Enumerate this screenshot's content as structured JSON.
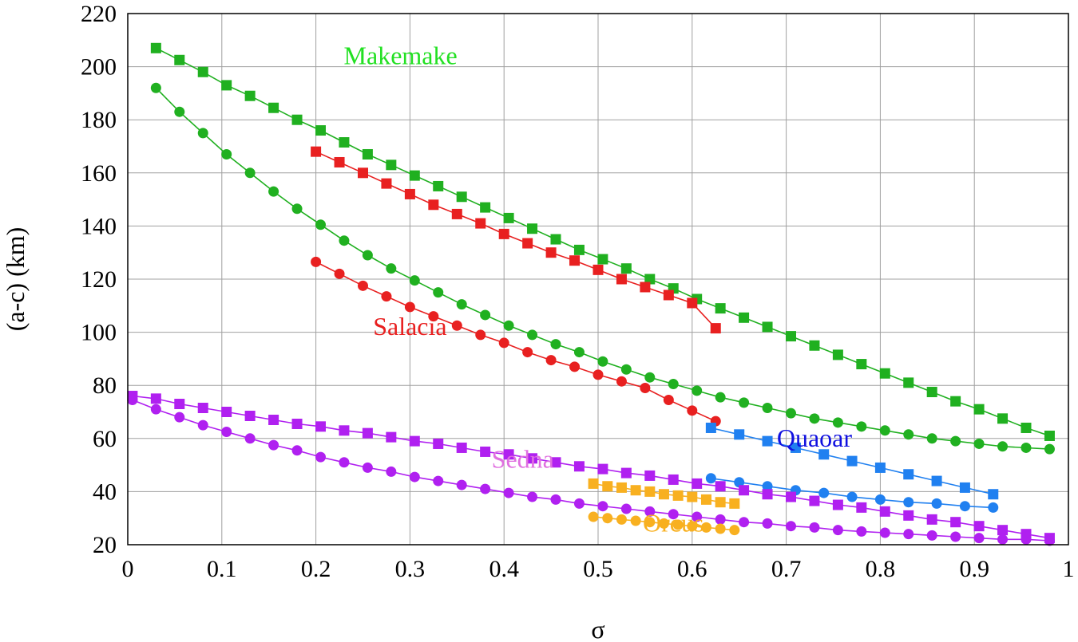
{
  "chart_data": {
    "type": "line",
    "title": "",
    "xlabel": "σ",
    "ylabel": "(a-c) (km)",
    "xlim": [
      0,
      1
    ],
    "ylim": [
      20,
      220
    ],
    "grid": true,
    "xticks": [
      0,
      0.1,
      0.2,
      0.3,
      0.4,
      0.5,
      0.6,
      0.7,
      0.8,
      0.9,
      1
    ],
    "xtick_labels": [
      "0",
      "0.1",
      "0.2",
      "0.3",
      "0.4",
      "0.5",
      "0.6",
      "0.7",
      "0.8",
      "0.9",
      "1"
    ],
    "yticks": [
      20,
      40,
      60,
      80,
      100,
      120,
      140,
      160,
      180,
      200,
      220
    ],
    "ytick_labels": [
      "20",
      "40",
      "60",
      "80",
      "100",
      "120",
      "140",
      "160",
      "180",
      "200",
      "220"
    ],
    "annotations": [
      {
        "id": "makemake",
        "text": "Makemake",
        "color": "#22e022",
        "x": 0.29,
        "y": 201
      },
      {
        "id": "salacia",
        "text": "Salacia",
        "color": "#e82020",
        "x": 0.3,
        "y": 99
      },
      {
        "id": "sedna",
        "text": "Sedna",
        "color": "#e070e0",
        "x": 0.42,
        "y": 49
      },
      {
        "id": "quaoar",
        "text": "Quaoar",
        "color": "#1010e0",
        "x": 0.73,
        "y": 57
      },
      {
        "id": "orcus",
        "text": "Orcus",
        "color": "#f8b020",
        "x": 0.58,
        "y": 25
      }
    ],
    "series": [
      {
        "name": "Makemake (squares)",
        "color": "#20b020",
        "marker": "square",
        "x": [
          0.03,
          0.055,
          0.08,
          0.105,
          0.13,
          0.155,
          0.18,
          0.205,
          0.23,
          0.255,
          0.28,
          0.305,
          0.33,
          0.355,
          0.38,
          0.405,
          0.43,
          0.455,
          0.48,
          0.505,
          0.53,
          0.555,
          0.58,
          0.605,
          0.63,
          0.655,
          0.68,
          0.705,
          0.73,
          0.755,
          0.78,
          0.805,
          0.83,
          0.855,
          0.88,
          0.905,
          0.93,
          0.955,
          0.98
        ],
        "y": [
          207,
          202.5,
          198,
          193,
          189,
          184.5,
          180,
          176,
          171.5,
          167,
          163,
          159,
          155,
          151,
          147,
          143,
          139,
          135,
          131,
          127.5,
          124,
          120,
          116.5,
          112.5,
          109,
          105.5,
          102,
          98.5,
          95,
          91.5,
          88,
          84.5,
          81,
          77.5,
          74,
          71,
          67.5,
          64,
          61
        ]
      },
      {
        "name": "Makemake (circles)",
        "color": "#20b020",
        "marker": "circle",
        "x": [
          0.03,
          0.055,
          0.08,
          0.105,
          0.13,
          0.155,
          0.18,
          0.205,
          0.23,
          0.255,
          0.28,
          0.305,
          0.33,
          0.355,
          0.38,
          0.405,
          0.43,
          0.455,
          0.48,
          0.505,
          0.53,
          0.555,
          0.58,
          0.605,
          0.63,
          0.655,
          0.68,
          0.705,
          0.73,
          0.755,
          0.78,
          0.805,
          0.83,
          0.855,
          0.88,
          0.905,
          0.93,
          0.955,
          0.98
        ],
        "y": [
          192,
          183,
          175,
          167,
          160,
          153,
          146.5,
          140.5,
          134.5,
          129,
          124,
          119.5,
          115,
          110.5,
          106.5,
          102.5,
          99,
          95.5,
          92.5,
          89,
          86,
          83,
          80.5,
          78,
          75.5,
          73.5,
          71.5,
          69.5,
          67.5,
          66,
          64.5,
          63,
          61.5,
          60,
          59,
          58,
          57,
          56.5,
          56
        ]
      },
      {
        "name": "Salacia (squares)",
        "color": "#e82020",
        "marker": "square",
        "x": [
          0.2,
          0.225,
          0.25,
          0.275,
          0.3,
          0.325,
          0.35,
          0.375,
          0.4,
          0.425,
          0.45,
          0.475,
          0.5,
          0.525,
          0.55,
          0.575,
          0.6,
          0.625
        ],
        "y": [
          168,
          164,
          160,
          156,
          152,
          148,
          144.5,
          141,
          137,
          133.5,
          130,
          127,
          123.5,
          120,
          117,
          114,
          111,
          101.5
        ]
      },
      {
        "name": "Salacia (circles)",
        "color": "#e82020",
        "marker": "circle",
        "x": [
          0.2,
          0.225,
          0.25,
          0.275,
          0.3,
          0.325,
          0.35,
          0.375,
          0.4,
          0.425,
          0.45,
          0.475,
          0.5,
          0.525,
          0.55,
          0.575,
          0.6,
          0.625
        ],
        "y": [
          126.5,
          122,
          117.5,
          113.5,
          109.5,
          106,
          102.5,
          99,
          96,
          92.5,
          89.5,
          87,
          84,
          81.5,
          79,
          74.5,
          70.5,
          66.5
        ]
      },
      {
        "name": "Quaoar (squares)",
        "color": "#2080f0",
        "marker": "square",
        "x": [
          0.62,
          0.65,
          0.68,
          0.71,
          0.74,
          0.77,
          0.8,
          0.83,
          0.86,
          0.89,
          0.92
        ],
        "y": [
          64,
          61.5,
          59,
          56.5,
          54,
          51.5,
          49,
          46.5,
          44,
          41.5,
          39
        ]
      },
      {
        "name": "Quaoar (circles)",
        "color": "#2080f0",
        "marker": "circle",
        "x": [
          0.62,
          0.65,
          0.68,
          0.71,
          0.74,
          0.77,
          0.8,
          0.83,
          0.86,
          0.89,
          0.92
        ],
        "y": [
          45,
          43.5,
          42,
          40.5,
          39.5,
          38,
          37,
          36,
          35.5,
          34.5,
          34
        ]
      },
      {
        "name": "Sedna (squares)",
        "color": "#b020f0",
        "marker": "square",
        "x": [
          0.005,
          0.03,
          0.055,
          0.08,
          0.105,
          0.13,
          0.155,
          0.18,
          0.205,
          0.23,
          0.255,
          0.28,
          0.305,
          0.33,
          0.355,
          0.38,
          0.405,
          0.43,
          0.455,
          0.48,
          0.505,
          0.53,
          0.555,
          0.58,
          0.605,
          0.63,
          0.655,
          0.68,
          0.705,
          0.73,
          0.755,
          0.78,
          0.805,
          0.83,
          0.855,
          0.88,
          0.905,
          0.93,
          0.955,
          0.98
        ],
        "y": [
          76,
          75,
          73,
          71.5,
          70,
          68.5,
          67,
          65.5,
          64.5,
          63,
          62,
          60.5,
          59,
          58,
          56.5,
          55,
          54,
          52.5,
          51,
          49.5,
          48.5,
          47,
          46,
          44.5,
          43,
          42,
          40.5,
          39,
          38,
          36.5,
          35,
          34,
          32.5,
          31,
          29.5,
          28.5,
          27,
          25.5,
          24,
          22.5
        ]
      },
      {
        "name": "Sedna (circles)",
        "color": "#b020f0",
        "marker": "circle",
        "x": [
          0.005,
          0.03,
          0.055,
          0.08,
          0.105,
          0.13,
          0.155,
          0.18,
          0.205,
          0.23,
          0.255,
          0.28,
          0.305,
          0.33,
          0.355,
          0.38,
          0.405,
          0.43,
          0.455,
          0.48,
          0.505,
          0.53,
          0.555,
          0.58,
          0.605,
          0.63,
          0.655,
          0.68,
          0.705,
          0.73,
          0.755,
          0.78,
          0.805,
          0.83,
          0.855,
          0.88,
          0.905,
          0.93,
          0.955,
          0.98
        ],
        "y": [
          74.5,
          71,
          68,
          65,
          62.5,
          60,
          57.5,
          55.5,
          53,
          51,
          49,
          47.5,
          45.5,
          44,
          42.5,
          41,
          39.5,
          38,
          37,
          35.5,
          34.5,
          33.5,
          32.5,
          31.5,
          30.5,
          29.5,
          28.5,
          28,
          27,
          26.5,
          25.5,
          25,
          24.5,
          24,
          23.5,
          23,
          22.5,
          22,
          22,
          21.5
        ]
      },
      {
        "name": "Orcus (squares)",
        "color": "#f8b020",
        "marker": "square",
        "x": [
          0.495,
          0.51,
          0.525,
          0.54,
          0.555,
          0.57,
          0.585,
          0.6,
          0.615,
          0.63,
          0.645
        ],
        "y": [
          43,
          42,
          41.5,
          40.5,
          40,
          39,
          38.5,
          38,
          37,
          36,
          35.5
        ]
      },
      {
        "name": "Orcus (circles)",
        "color": "#f8b020",
        "marker": "circle",
        "x": [
          0.495,
          0.51,
          0.525,
          0.54,
          0.555,
          0.57,
          0.585,
          0.6,
          0.615,
          0.63,
          0.645
        ],
        "y": [
          30.5,
          30,
          29.5,
          29,
          28.5,
          28,
          27.5,
          27,
          26.5,
          26,
          25.5
        ]
      }
    ]
  }
}
